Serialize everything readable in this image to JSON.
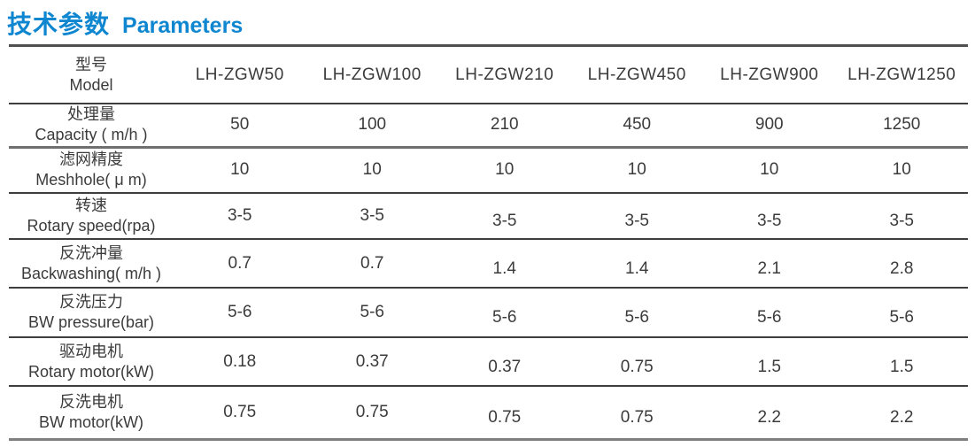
{
  "page": {
    "title_zh": "技术参数",
    "title_en": "Parameters",
    "accent_color": "#0e86d0"
  },
  "table": {
    "header": {
      "label_zh": "型号",
      "label_en": "Model",
      "columns": [
        "LH-ZGW50",
        "LH-ZGW100",
        "LH-ZGW210",
        "LH-ZGW450",
        "LH-ZGW900",
        "LH-ZGW1250"
      ]
    },
    "rows": [
      {
        "label_zh": "处理量",
        "label_en": "Capacity ( m/h )",
        "values": [
          "50",
          "100",
          "210",
          "450",
          "900",
          "1250"
        ]
      },
      {
        "label_zh": "滤网精度",
        "label_en": "Meshhole( μ m)",
        "values": [
          "10",
          "10",
          "10",
          "10",
          "10",
          "10"
        ]
      },
      {
        "label_zh": "转速",
        "label_en": "Rotary speed(rpa)",
        "values": [
          "3-5",
          "3-5",
          "3-5",
          "3-5",
          "3-5",
          "3-5"
        ]
      },
      {
        "label_zh": "反洗冲量",
        "label_en": "Backwashing( m/h )",
        "values": [
          "0.7",
          "0.7",
          "1.4",
          "1.4",
          "2.1",
          "2.8"
        ]
      },
      {
        "label_zh": "反洗压力",
        "label_en": "BW pressure(bar)",
        "values": [
          "5-6",
          "5-6",
          "5-6",
          "5-6",
          "5-6",
          "5-6"
        ]
      },
      {
        "label_zh": "驱动电机",
        "label_en": "Rotary motor(kW)",
        "values": [
          "0.18",
          "0.37",
          "0.37",
          "0.75",
          "1.5",
          "1.5"
        ]
      },
      {
        "label_zh": "反洗电机",
        "label_en": "BW motor(kW)",
        "values": [
          "0.75",
          "0.75",
          "0.75",
          "0.75",
          "2.2",
          "2.2"
        ]
      }
    ]
  }
}
